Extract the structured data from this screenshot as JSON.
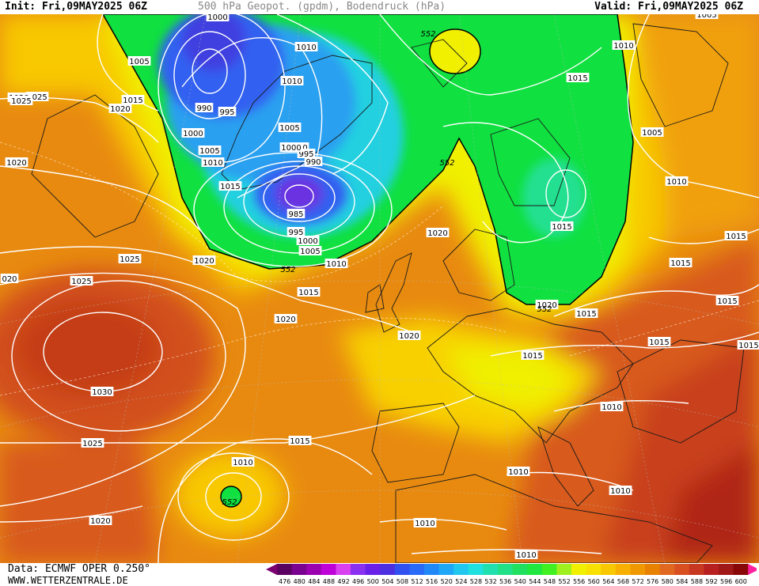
{
  "header": {
    "init": "Init: Fri,09MAY2025 06Z",
    "title": "500 hPa Geopot. (gpdm), Bodendruck (hPa)",
    "valid": "Valid: Fri,09MAY2025 06Z"
  },
  "footer": {
    "source": "Data: ECMWF OPER 0.250°",
    "website": "WWW.WETTERZENTRALE.DE"
  },
  "legend": {
    "values": [
      "476",
      "480",
      "484",
      "488",
      "492",
      "496",
      "500",
      "504",
      "508",
      "512",
      "516",
      "520",
      "524",
      "528",
      "532",
      "536",
      "540",
      "544",
      "548",
      "552",
      "556",
      "560",
      "564",
      "568",
      "572",
      "576",
      "580",
      "584",
      "588",
      "592",
      "596",
      "600"
    ],
    "colors": [
      "#5a0060",
      "#7a0090",
      "#9a00b0",
      "#c000d8",
      "#d840f0",
      "#8a30f0",
      "#6a20e8",
      "#4a30e0",
      "#3050f0",
      "#2a6af8",
      "#2088f8",
      "#20a8f8",
      "#20c8f0",
      "#20e0e0",
      "#20e0b0",
      "#20e088",
      "#20e060",
      "#20e840",
      "#40f020",
      "#a0f020",
      "#f0f000",
      "#f8e000",
      "#f8c800",
      "#f8b000",
      "#f09800",
      "#e88000",
      "#e06820",
      "#d85020",
      "#c83820",
      "#b82020",
      "#a01818",
      "#880808"
    ],
    "arrow_left": "#7a0070",
    "arrow_right": "#ff20a0"
  },
  "isobars": [
    {
      "label": "1000",
      "id": "iso-1000-a"
    },
    {
      "label": "1010",
      "id": "iso-1010-a"
    },
    {
      "label": "1010",
      "id": "iso-1010-b"
    },
    {
      "label": "1015",
      "id": "iso-1015-a"
    },
    {
      "label": "1025",
      "id": "iso-1025-a"
    },
    {
      "label": "1005",
      "id": "iso-1005-a"
    },
    {
      "label": "1020",
      "id": "iso-1020-a"
    },
    {
      "label": "990",
      "id": "iso-990-a"
    },
    {
      "label": "995",
      "id": "iso-995-a"
    },
    {
      "label": "1000",
      "id": "iso-1000-b"
    },
    {
      "label": "1005",
      "id": "iso-1005-b"
    },
    {
      "label": "1010",
      "id": "iso-1010-c"
    },
    {
      "label": "1005",
      "id": "iso-1005-c"
    },
    {
      "label": "1000",
      "id": "iso-1000-c"
    },
    {
      "label": "995",
      "id": "iso-995-b"
    },
    {
      "label": "990",
      "id": "iso-990-b"
    },
    {
      "label": "1015",
      "id": "iso-1015-b"
    },
    {
      "label": "985",
      "id": "iso-985"
    },
    {
      "label": "995",
      "id": "iso-995-c"
    },
    {
      "label": "1000",
      "id": "iso-1000-d"
    },
    {
      "label": "1005",
      "id": "iso-1005-d"
    },
    {
      "label": "1010",
      "id": "iso-1010-d"
    },
    {
      "label": "1020",
      "id": "iso-1020-b"
    },
    {
      "label": "1015",
      "id": "iso-1015-c"
    },
    {
      "label": "1020",
      "id": "iso-1020-c"
    },
    {
      "label": "1025",
      "id": "iso-1025-b"
    },
    {
      "label": "1025",
      "id": "iso-1025-c"
    },
    {
      "label": "1020",
      "id": "iso-1020-d"
    },
    {
      "label": "1030",
      "id": "iso-1030"
    },
    {
      "label": "1025",
      "id": "iso-1025-d"
    },
    {
      "label": "1015",
      "id": "iso-1015-d"
    },
    {
      "label": "1010",
      "id": "iso-1010-e"
    },
    {
      "label": "1020",
      "id": "iso-1020-e"
    },
    {
      "label": "1020",
      "id": "iso-1020-f"
    },
    {
      "label": "1020",
      "id": "iso-1020-g"
    },
    {
      "label": "1015",
      "id": "iso-1015-e"
    },
    {
      "label": "1015",
      "id": "iso-1015-f"
    },
    {
      "label": "1020",
      "id": "iso-1020-h"
    },
    {
      "label": "1015",
      "id": "iso-1015-g"
    },
    {
      "label": "1010",
      "id": "iso-1010-f"
    },
    {
      "label": "1005",
      "id": "iso-1005-e"
    },
    {
      "label": "1010",
      "id": "iso-1010-g"
    },
    {
      "label": "1015",
      "id": "iso-1015-h"
    },
    {
      "label": "1015",
      "id": "iso-1015-i"
    },
    {
      "label": "1015",
      "id": "iso-1015-j"
    },
    {
      "label": "1015",
      "id": "iso-1015-k"
    },
    {
      "label": "1010",
      "id": "iso-1010-h"
    },
    {
      "label": "1010",
      "id": "iso-1010-i"
    },
    {
      "label": "1010",
      "id": "iso-1010-j"
    },
    {
      "label": "1010",
      "id": "iso-1010-k"
    },
    {
      "label": "1010",
      "id": "iso-1010-l"
    },
    {
      "label": "1015",
      "id": "iso-1015-l"
    },
    {
      "label": "1020",
      "id": "iso-1020-i"
    },
    {
      "label": "1005",
      "id": "iso-1005-f"
    },
    {
      "label": "1025",
      "id": "iso-1025-e"
    },
    {
      "label": "020",
      "id": "iso-1020-edge"
    },
    {
      "label": "1015",
      "id": "iso-1015-m"
    },
    {
      "label": "1000",
      "id": "iso-1000-e"
    }
  ],
  "geopot_labels": [
    {
      "label": "552",
      "id": "gp-552-a"
    },
    {
      "label": "552",
      "id": "gp-552-b"
    },
    {
      "label": "552",
      "id": "gp-552-c"
    },
    {
      "label": "552",
      "id": "gp-552-d"
    },
    {
      "label": "552",
      "id": "gp-552-e"
    }
  ]
}
